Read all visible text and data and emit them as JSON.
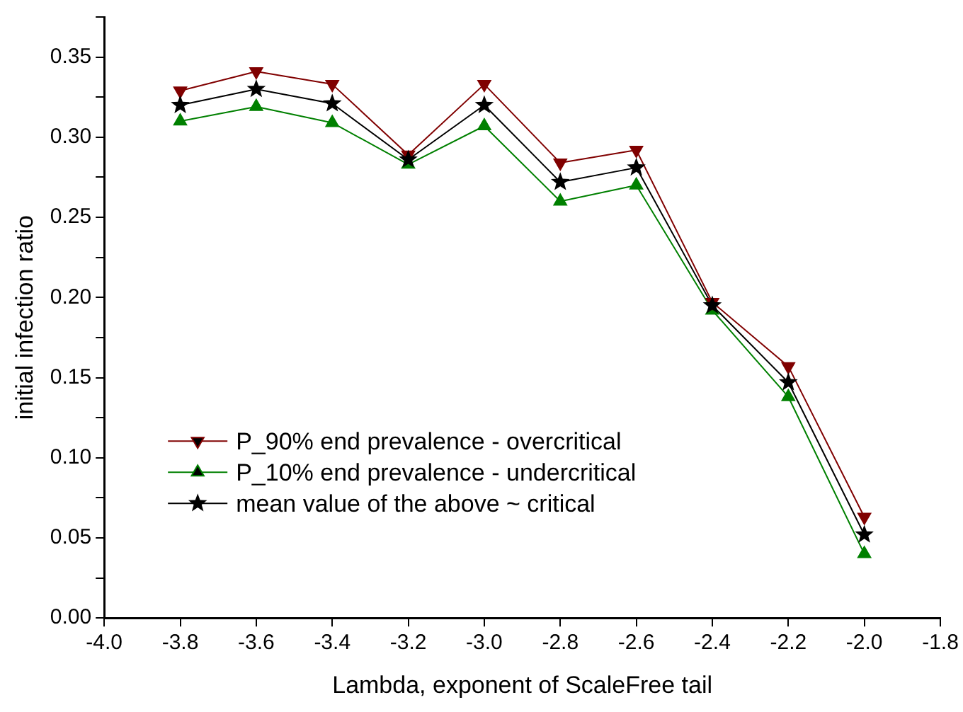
{
  "chart_data": {
    "type": "line",
    "xlabel": "Lambda, exponent of ScaleFree tail",
    "ylabel": "initial infection ratio",
    "x": [
      -3.8,
      -3.6,
      -3.4,
      -3.2,
      -3.0,
      -2.8,
      -2.6,
      -2.4,
      -2.2,
      -2.0
    ],
    "series": [
      {
        "name": "P_90% end prevalence - overcritical",
        "color": "#800000",
        "marker": "triangle_down",
        "values": [
          0.329,
          0.341,
          0.333,
          0.289,
          0.333,
          0.284,
          0.292,
          0.197,
          0.157,
          0.063
        ]
      },
      {
        "name": "P_10% end prevalence - undercritical",
        "color": "#008000",
        "marker": "triangle",
        "values": [
          0.31,
          0.319,
          0.309,
          0.283,
          0.307,
          0.26,
          0.27,
          0.192,
          0.138,
          0.04
        ]
      },
      {
        "name": "mean value of the above ~ critical",
        "color": "#000000",
        "marker": "star",
        "values": [
          0.32,
          0.33,
          0.321,
          0.286,
          0.32,
          0.272,
          0.281,
          0.195,
          0.147,
          0.052
        ]
      }
    ],
    "xlim": [
      -4.0,
      -1.8
    ],
    "xticks": [
      {
        "value": -4.0,
        "label": "-4.0"
      },
      {
        "value": -3.8,
        "label": "-3.8"
      },
      {
        "value": -3.6,
        "label": "-3.6"
      },
      {
        "value": -3.4,
        "label": "-3.4"
      },
      {
        "value": -3.2,
        "label": "-3.2"
      },
      {
        "value": -3.0,
        "label": "-3.0"
      },
      {
        "value": -2.8,
        "label": "-2.8"
      },
      {
        "value": -2.6,
        "label": "-2.6"
      },
      {
        "value": -2.4,
        "label": "-2.4"
      },
      {
        "value": -2.2,
        "label": "-2.2"
      },
      {
        "value": -2.0,
        "label": "-2.0"
      },
      {
        "value": -1.8,
        "label": "-1.8"
      }
    ],
    "ylim": [
      0,
      0.375
    ],
    "yticks": [
      {
        "value": 0,
        "label": "0.00"
      },
      {
        "value": 0.025,
        "label": null
      },
      {
        "value": 0.05,
        "label": "0.05"
      },
      {
        "value": 0.075,
        "label": null
      },
      {
        "value": 0.1,
        "label": "0.10"
      },
      {
        "value": 0.125,
        "label": null
      },
      {
        "value": 0.15,
        "label": "0.15"
      },
      {
        "value": 0.175,
        "label": null
      },
      {
        "value": 0.2,
        "label": "0.20"
      },
      {
        "value": 0.225,
        "label": null
      },
      {
        "value": 0.25,
        "label": "0.25"
      },
      {
        "value": 0.275,
        "label": null
      },
      {
        "value": 0.3,
        "label": "0.30"
      },
      {
        "value": 0.325,
        "label": null
      },
      {
        "value": 0.35,
        "label": "0.35"
      },
      {
        "value": 0.375,
        "label": null
      }
    ],
    "grid": false,
    "legend": "bottom left",
    "line_style": "solid"
  }
}
